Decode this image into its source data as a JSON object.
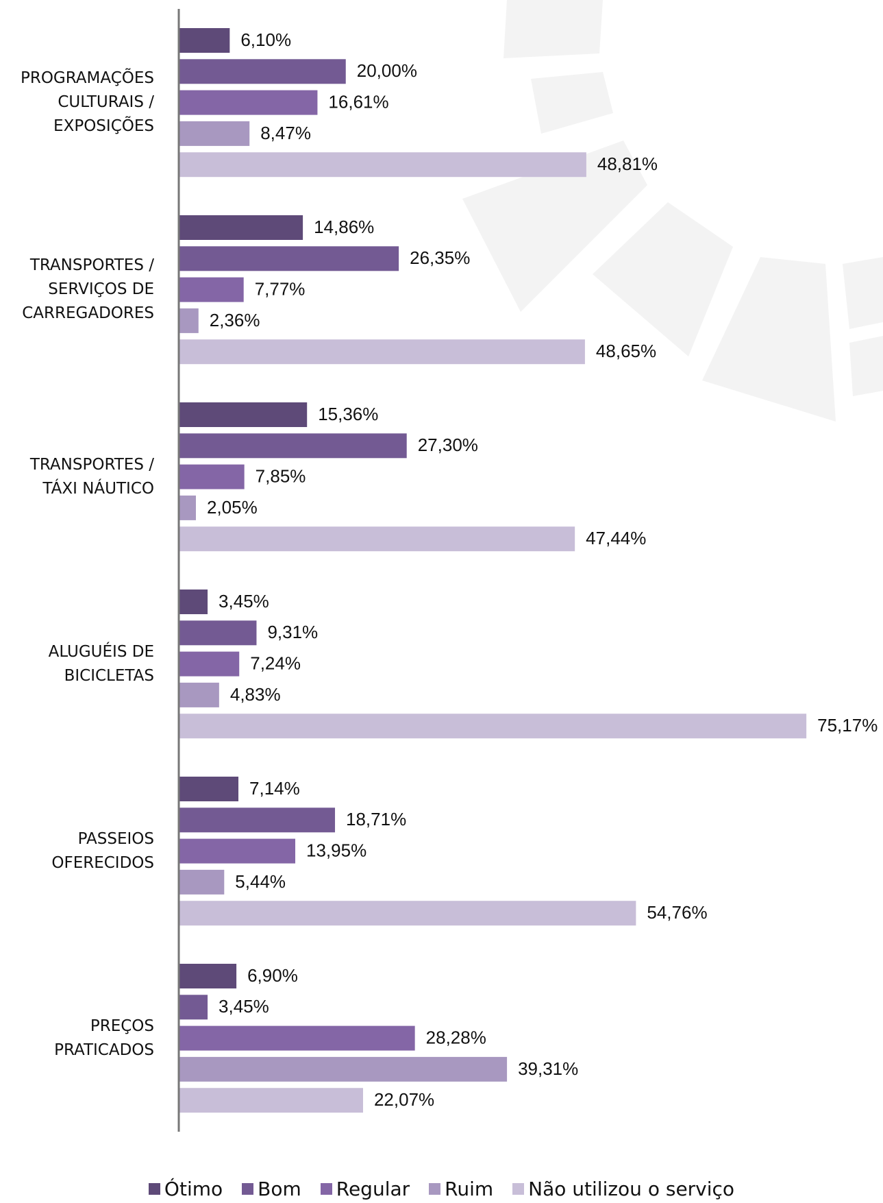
{
  "chart_data": {
    "type": "bar",
    "orientation": "horizontal",
    "categories": [
      "PROGRAMAÇÕES\nCULTURAIS /\nEXPOSIÇÕES",
      "TRANSPORTES /\nSERVIÇOS DE\nCARREGADORES",
      "TRANSPORTES /\nTÁXI NÁUTICO",
      "ALUGUÉIS DE\nBICICLETAS",
      "PASSEIOS\nOFERECIDOS",
      "PREÇOS\nPRATICADOS"
    ],
    "series": [
      {
        "name": "Ótimo",
        "color": "#5e4a78",
        "values": [
          6.1,
          14.86,
          15.36,
          3.45,
          7.14,
          6.9
        ],
        "value_labels": [
          "6,10%",
          "14,86%",
          "15,36%",
          "3,45%",
          "7,14%",
          "6,90%"
        ]
      },
      {
        "name": "Bom",
        "color": "#735a93",
        "values": [
          20.0,
          26.35,
          27.3,
          9.31,
          18.71,
          3.45
        ],
        "value_labels": [
          "20,00%",
          "26,35%",
          "27,30%",
          "9,31%",
          "18,71%",
          "3,45%"
        ]
      },
      {
        "name": "Regular",
        "color": "#8466a6",
        "values": [
          16.61,
          7.77,
          7.85,
          7.24,
          13.95,
          28.28
        ],
        "value_labels": [
          "16,61%",
          "7,77%",
          "7,85%",
          "7,24%",
          "13,95%",
          "28,28%"
        ]
      },
      {
        "name": "Ruim",
        "color": "#a898c0",
        "values": [
          8.47,
          2.36,
          2.05,
          4.83,
          5.44,
          39.31
        ],
        "value_labels": [
          "8,47%",
          "2,36%",
          "2,05%",
          "4,83%",
          "5,44%",
          "39,31%"
        ]
      },
      {
        "name": "Não utilizou o serviço",
        "color": "#c8bed8",
        "values": [
          48.81,
          48.65,
          47.44,
          75.17,
          54.76,
          22.07
        ],
        "value_labels": [
          "48,81%",
          "48,65%",
          "47,44%",
          "75,17%",
          "54,76%",
          "22,07%"
        ]
      }
    ],
    "xlim": [
      0,
      80
    ],
    "legend": "bottom"
  }
}
